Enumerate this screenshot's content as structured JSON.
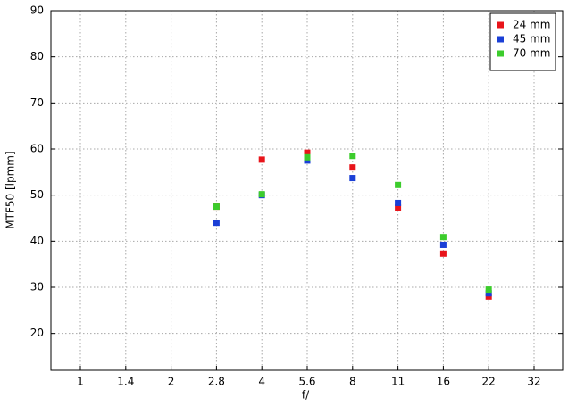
{
  "chart_data": {
    "type": "scatter",
    "x_label": "f/",
    "y_label": "MTF50 [lpmm]",
    "categories": [
      "1",
      "1.4",
      "2",
      "2.8",
      "4",
      "5.6",
      "8",
      "11",
      "16",
      "22",
      "32"
    ],
    "series": [
      {
        "name": "24 mm",
        "color": "#e8141a",
        "values": [
          null,
          null,
          null,
          47.5,
          57.7,
          59.2,
          56,
          47.3,
          37.3,
          28,
          null
        ]
      },
      {
        "name": "45 mm",
        "color": "#1a3fd6",
        "values": [
          null,
          null,
          null,
          44,
          50,
          57.5,
          53.7,
          48.3,
          39.2,
          28.7,
          null
        ]
      },
      {
        "name": "70 mm",
        "color": "#3ccc2c",
        "values": [
          null,
          null,
          null,
          47.5,
          50.2,
          58.2,
          58.5,
          52.2,
          40.9,
          29.5,
          null
        ]
      }
    ],
    "ylim": [
      12,
      90
    ],
    "yticks": [
      20,
      30,
      40,
      50,
      60,
      70,
      80,
      90
    ],
    "grid": true,
    "legend": "top-right"
  }
}
